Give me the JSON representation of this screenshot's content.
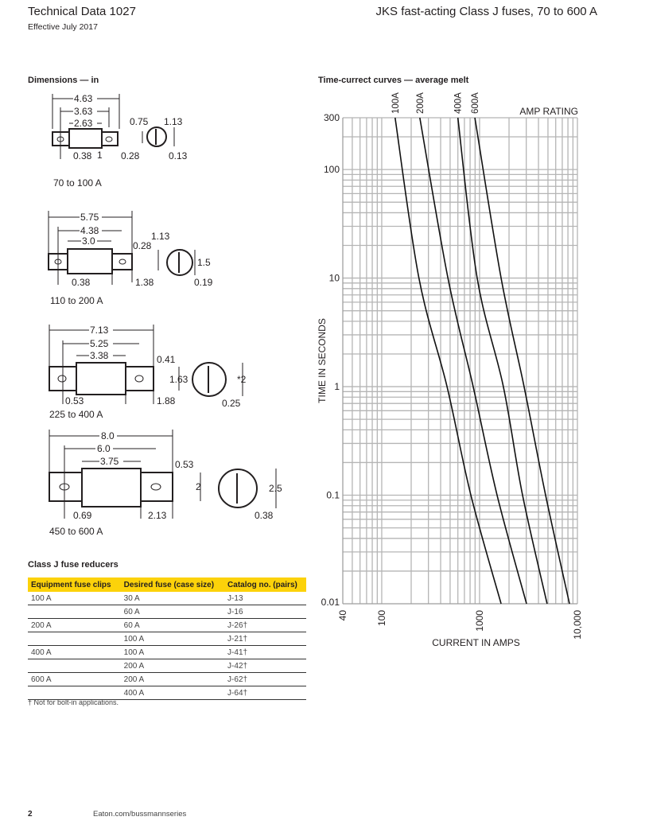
{
  "header": {
    "doc_title": "Technical Data 1027",
    "effective": "Effective July 2017",
    "product_title": "JKS fast-acting Class J fuses, 70 to 600 A"
  },
  "dimensions": {
    "title": "Dimensions — in",
    "drawings": [
      {
        "caption": "70 to 100 A",
        "labels": [
          "4.63",
          "3.63",
          "2.63",
          "0.75",
          "1.13",
          "0.38",
          "1",
          "0.28",
          "0.13"
        ]
      },
      {
        "caption": "110 to 200 A",
        "labels": [
          "5.75",
          "4.38",
          "3.0",
          "0.28",
          "1.13",
          "1.5",
          "0.38",
          "1.38",
          "0.19"
        ]
      },
      {
        "caption": "225 to 400 A",
        "labels": [
          "7.13",
          "5.25",
          "3.38",
          "0.41",
          "1.63",
          "*2",
          "0.53",
          "1.88",
          "0.25"
        ]
      },
      {
        "caption": "450 to 600 A",
        "labels": [
          "8.0",
          "6.0",
          "3.75",
          "0.53",
          "2",
          "2.5",
          "0.69",
          "2.13",
          "0.38"
        ]
      }
    ]
  },
  "reducers": {
    "title": "Class J fuse reducers",
    "columns": [
      "Equipment fuse clips",
      "Desired fuse (case size)",
      "Catalog no. (pairs)"
    ],
    "rows": [
      [
        "100 A",
        "30 A",
        "J-13"
      ],
      [
        "",
        "60 A",
        "J-16"
      ],
      [
        "200 A",
        "60 A",
        "J-26†"
      ],
      [
        "",
        "100 A",
        "J-21†"
      ],
      [
        "400 A",
        "100 A",
        "J-41†"
      ],
      [
        "",
        "200 A",
        "J-42†"
      ],
      [
        "600 A",
        "200 A",
        "J-62†"
      ],
      [
        "",
        "400 A",
        "J-64†"
      ]
    ],
    "header_color": "#fcd20a",
    "footnote": "† Not for bolt-in applications."
  },
  "chart_data": {
    "type": "line",
    "title": "Time-currect curves — average melt",
    "xlabel": "CURRENT IN AMPS",
    "ylabel": "TIME IN SECONDS",
    "legend_title": "AMP RATING",
    "x_scale": "log",
    "y_scale": "log",
    "xlim": [
      40,
      10000
    ],
    "ylim": [
      0.01,
      300
    ],
    "x_ticks": [
      "40",
      "100",
      "1000",
      "10,000"
    ],
    "x_tick_values": [
      40,
      100,
      1000,
      10000
    ],
    "y_ticks": [
      "300",
      "100",
      "10",
      "1",
      "0.1",
      "0.01"
    ],
    "y_tick_values": [
      300,
      100,
      10,
      1,
      0.1,
      0.01
    ],
    "grid": true,
    "series": [
      {
        "name": "100A",
        "points": [
          [
            137,
            300
          ],
          [
            240,
            10
          ],
          [
            465,
            1
          ],
          [
            815,
            0.1
          ],
          [
            1660,
            0.01
          ]
        ]
      },
      {
        "name": "200A",
        "points": [
          [
            245,
            300
          ],
          [
            475,
            10
          ],
          [
            860,
            1
          ],
          [
            1510,
            0.1
          ],
          [
            3020,
            0.01
          ]
        ]
      },
      {
        "name": "400A",
        "points": [
          [
            600,
            300
          ],
          [
            945,
            10
          ],
          [
            1750,
            1
          ],
          [
            2750,
            0.1
          ],
          [
            4900,
            0.01
          ]
        ]
      },
      {
        "name": "600A",
        "points": [
          [
            895,
            300
          ],
          [
            1660,
            10
          ],
          [
            2850,
            1
          ],
          [
            4730,
            0.1
          ],
          [
            8300,
            0.01
          ]
        ]
      }
    ]
  },
  "footer": {
    "page_number": "2",
    "website": "Eaton.com/bussmannseries"
  }
}
